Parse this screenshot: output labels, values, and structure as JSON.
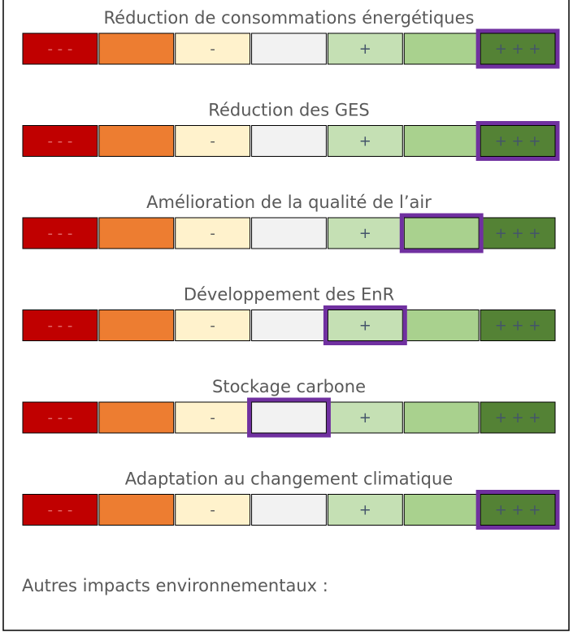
{
  "scale_cells": [
    {
      "label": "- - -",
      "color": "#c00000",
      "text_color": "#e46c6c"
    },
    {
      "color": "#ed7d31"
    },
    {
      "label": "-",
      "color": "#fff2cc",
      "text_color": "#595959"
    },
    {
      "color": "#f2f2f2"
    },
    {
      "label": "+",
      "color": "#c5e0b4",
      "text_color": "#44546a"
    },
    {
      "color": "#a9d18e"
    },
    {
      "label": "+ + +",
      "color": "#548235",
      "text_color": "#44546a"
    }
  ],
  "highlight_color": "#7030a0",
  "scales": [
    {
      "title": "Réduction de consommations énergétiques",
      "selected": 6
    },
    {
      "title": "Réduction des GES",
      "selected": 6
    },
    {
      "title": "Amélioration de la qualité de l’air",
      "selected": 5
    },
    {
      "title": "Développement des EnR",
      "selected": 4
    },
    {
      "title": "Stockage carbone",
      "selected": 3
    },
    {
      "title": "Adaptation au changement climatique",
      "selected": 6
    }
  ],
  "footer": "Autres impacts environnementaux :"
}
